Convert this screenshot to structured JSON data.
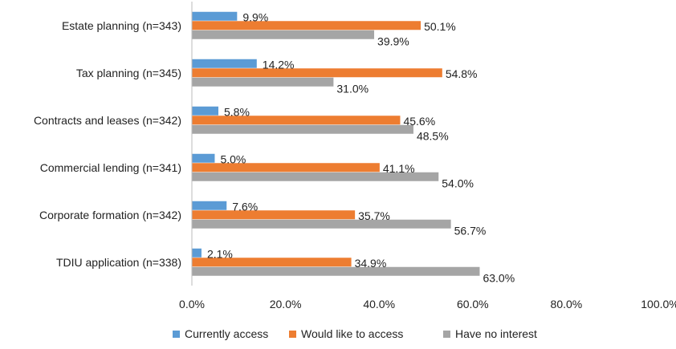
{
  "chart_data": {
    "type": "bar",
    "orientation": "horizontal",
    "title": "",
    "xlabel": "",
    "ylabel": "",
    "xlim": [
      0,
      100
    ],
    "x_ticks": [
      "0.0%",
      "20.0%",
      "40.0%",
      "60.0%",
      "80.0%",
      "100.0%"
    ],
    "grid": false,
    "legend_position": "bottom",
    "categories": [
      "Estate planning (n=343)",
      "Tax planning (n=345)",
      "Contracts and leases (n=342)",
      "Commercial lending (n=341)",
      "Corporate formation (n=342)",
      "TDIU application (n=338)"
    ],
    "series": [
      {
        "name": "Currently access",
        "color": "#5B9BD5",
        "values": [
          9.9,
          14.2,
          5.8,
          5.0,
          7.6,
          2.1
        ]
      },
      {
        "name": "Would like to access",
        "color": "#ED7D31",
        "values": [
          50.1,
          54.8,
          45.6,
          41.1,
          35.7,
          34.9
        ]
      },
      {
        "name": "Have no interest",
        "color": "#A5A5A5",
        "values": [
          39.9,
          31.0,
          48.5,
          54.0,
          56.7,
          63.0
        ]
      }
    ]
  }
}
